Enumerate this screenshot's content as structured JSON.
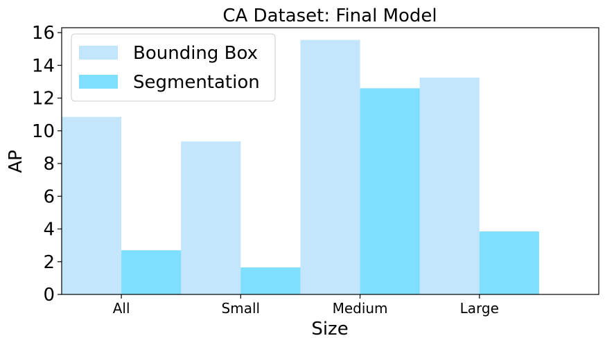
{
  "chart_data": {
    "type": "bar",
    "title": "CA Dataset: Final Model",
    "xlabel": "Size",
    "ylabel": "AP",
    "categories": [
      "All",
      "Small",
      "Medium",
      "Large"
    ],
    "series": [
      {
        "name": "Bounding Box",
        "values": [
          10.85,
          9.35,
          15.55,
          13.25
        ],
        "color": "#87CEFA"
      },
      {
        "name": "Segmentation",
        "values": [
          2.7,
          1.65,
          12.6,
          3.85
        ],
        "color": "#00BFFF"
      }
    ],
    "yticks": [
      "0",
      "2",
      "4",
      "6",
      "8",
      "10",
      "12",
      "14",
      "16"
    ],
    "ylim": [
      0,
      16.3
    ],
    "bar_alpha": 0.5,
    "grid": false,
    "legend_position": "top-left"
  }
}
